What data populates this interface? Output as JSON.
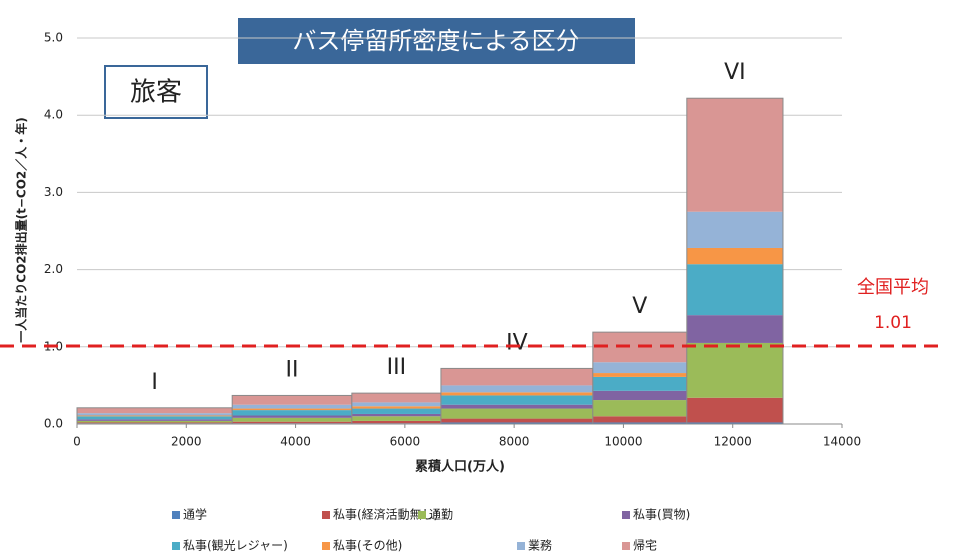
{
  "chart_data": {
    "type": "bar",
    "stacked": true,
    "title": "バス停留所密度による区分",
    "subtitle": "旅客",
    "x_label": "累積人口(万人)",
    "y_label": "一人当たりCO2排出量(t−CO2／人・年)",
    "categories": [
      "I",
      "II",
      "III",
      "IV",
      "V",
      "VI"
    ],
    "bins": [
      0,
      2840,
      5030,
      6660,
      9440,
      11160,
      12920
    ],
    "series": [
      {
        "name": "通学",
        "color": "#4f81bd",
        "values": [
          0.01,
          0.01,
          0.01,
          0.02,
          0.02,
          0.02
        ]
      },
      {
        "name": "私事(経済活動無し)",
        "color": "#c0504d",
        "values": [
          0.01,
          0.02,
          0.03,
          0.05,
          0.08,
          0.32
        ]
      },
      {
        "name": "通勤",
        "color": "#9bbb59",
        "values": [
          0.02,
          0.05,
          0.06,
          0.13,
          0.21,
          0.71
        ]
      },
      {
        "name": "私事(買物)",
        "color": "#8064a2",
        "values": [
          0.02,
          0.03,
          0.03,
          0.05,
          0.12,
          0.36
        ]
      },
      {
        "name": "私事(観光レジャー)",
        "color": "#4bacc6",
        "values": [
          0.04,
          0.07,
          0.07,
          0.12,
          0.18,
          0.66
        ]
      },
      {
        "name": "私事(その他)",
        "color": "#f79646",
        "values": [
          0.01,
          0.02,
          0.03,
          0.04,
          0.05,
          0.21
        ]
      },
      {
        "name": "業務",
        "color": "#95b3d7",
        "values": [
          0.03,
          0.05,
          0.05,
          0.09,
          0.14,
          0.47
        ]
      },
      {
        "name": "帰宅",
        "color": "#d99694",
        "values": [
          0.07,
          0.12,
          0.12,
          0.22,
          0.39,
          1.47
        ]
      }
    ],
    "xlim": [
      0,
      14000
    ],
    "xticks": [
      0,
      2000,
      4000,
      6000,
      8000,
      10000,
      12000,
      14000
    ],
    "ylim": [
      0,
      5
    ],
    "yticks": [
      {
        "value": 0,
        "label": "0.0"
      },
      {
        "value": 1,
        "label": "1.0"
      },
      {
        "value": 2,
        "label": "2.0"
      },
      {
        "value": 3,
        "label": "3.0"
      },
      {
        "value": 4,
        "label": "4.0"
      },
      {
        "value": 5,
        "label": "5.0"
      }
    ],
    "grid": true,
    "reference_line": {
      "value": 1.01,
      "label": "全国平均",
      "color": "#e02020"
    },
    "legend": "bottom"
  }
}
